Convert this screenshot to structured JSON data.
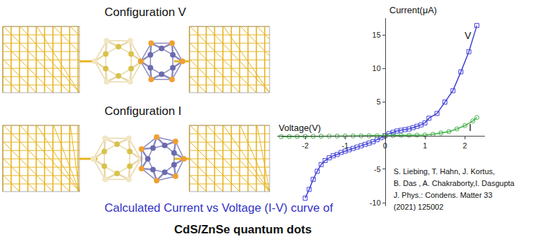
{
  "chart_data": {
    "type": "line",
    "xlabel": "Voltage(V)",
    "ylabel": "Current(μA)",
    "xlim": [
      -2.7,
      2.5
    ],
    "xticks": [
      -2,
      -1,
      0,
      1,
      2
    ],
    "ylim": [
      -10.5,
      17.5
    ],
    "yticks": [
      -10,
      -5,
      5,
      10,
      15
    ],
    "grid": false,
    "series": [
      {
        "name": "V",
        "color": "#4040d8",
        "marker": "open square",
        "line_style": "solid",
        "x": [
          -2.0,
          -1.9,
          -1.8,
          -1.7,
          -1.6,
          -1.5,
          -1.4,
          -1.3,
          -1.2,
          -1.1,
          -1.0,
          -0.9,
          -0.8,
          -0.7,
          -0.6,
          -0.5,
          -0.4,
          -0.3,
          -0.2,
          -0.1,
          0,
          0.1,
          0.2,
          0.3,
          0.4,
          0.5,
          0.6,
          0.7,
          0.8,
          0.9,
          1.0,
          1.1,
          1.3,
          1.5,
          1.7,
          1.9,
          2.1,
          2.3
        ],
        "values": [
          -9.3,
          -8.0,
          -6.5,
          -5.3,
          -4.3,
          -3.7,
          -3.3,
          -3.0,
          -2.8,
          -2.5,
          -2.3,
          -2.1,
          -1.9,
          -1.7,
          -1.5,
          -1.3,
          -1.1,
          -0.9,
          -0.6,
          -0.3,
          0,
          0.3,
          0.5,
          0.7,
          0.8,
          0.9,
          1.0,
          1.2,
          1.4,
          1.6,
          1.9,
          2.6,
          3.3,
          5.0,
          6.7,
          9.5,
          12.5,
          16.4
        ]
      },
      {
        "name": "I",
        "color": "#3cb043",
        "marker": "open circle",
        "line_style": "solid",
        "x": [
          -2.6,
          -2.4,
          -2.2,
          -2.0,
          -1.8,
          -1.6,
          -1.4,
          -1.2,
          -1.0,
          -0.8,
          -0.6,
          -0.4,
          -0.2,
          0,
          0.2,
          0.4,
          0.6,
          0.8,
          1.0,
          1.2,
          1.4,
          1.6,
          1.8,
          2.0,
          2.2,
          2.3
        ],
        "values": [
          -0.15,
          -0.13,
          -0.12,
          -0.1,
          -0.09,
          -0.08,
          -0.07,
          -0.06,
          -0.05,
          -0.04,
          -0.03,
          -0.02,
          -0.01,
          0,
          0.02,
          0.04,
          0.06,
          0.08,
          0.1,
          0.2,
          0.4,
          0.6,
          1.0,
          1.5,
          2.2,
          2.7
        ]
      }
    ]
  },
  "figure": {
    "panels": [
      {
        "label": "Configuration V"
      },
      {
        "label": "Configuration I"
      }
    ],
    "citation": [
      "S. Liebing, T. Hahn, J. Kortus,",
      "B. Das , A. Chakraborty,I. Dasgupta",
      "J. Phys.: Condens. Matter 33",
      "(2021) 125002"
    ],
    "caption": [
      "Calculated Current vs Voltage (I-V) curve of",
      "CdS/ZnSe quantum dots"
    ]
  }
}
